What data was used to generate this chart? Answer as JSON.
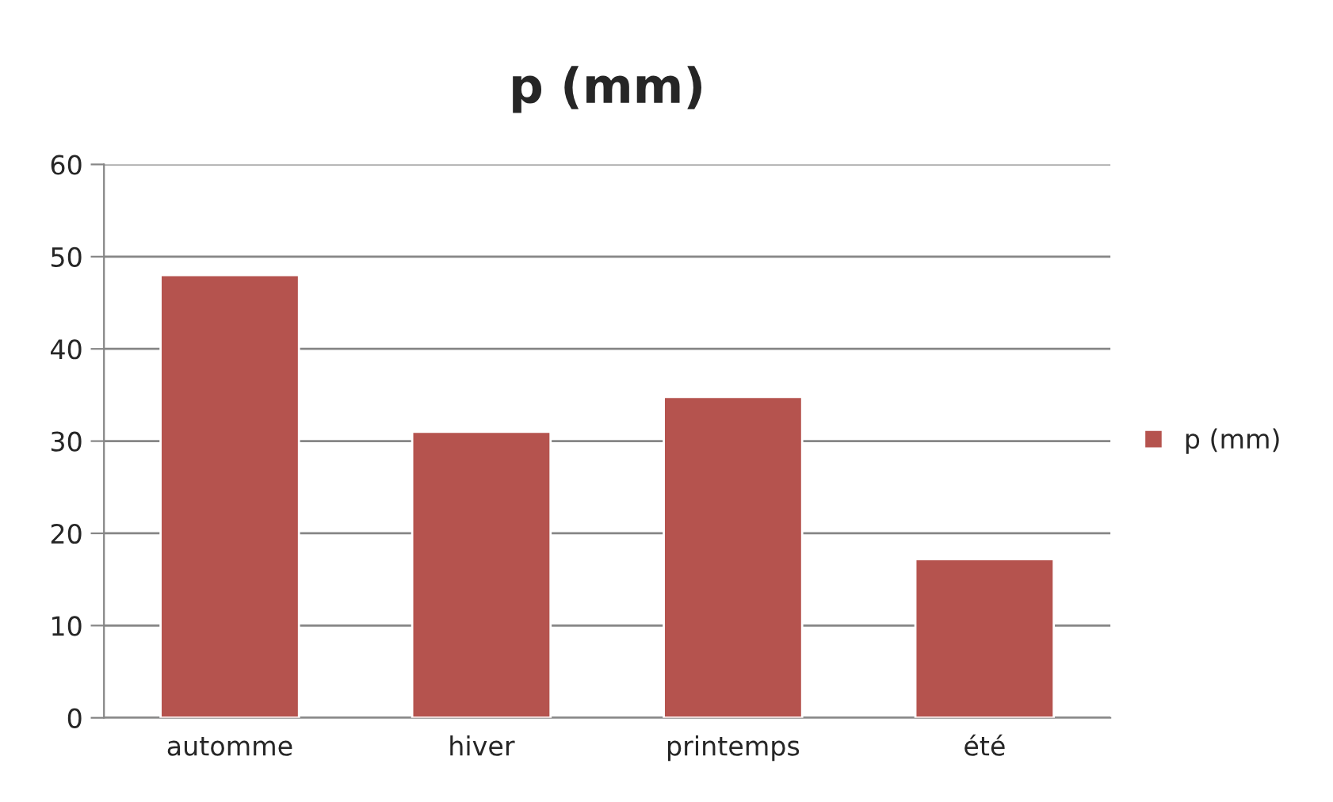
{
  "chart_data": {
    "type": "bar",
    "title": "p (mm)",
    "categories": [
      "automme",
      "hiver",
      "printemps",
      "été"
    ],
    "series": [
      {
        "name": "p (mm)",
        "color": "#b5534e",
        "values": [
          48,
          31,
          34.8,
          17.2
        ]
      }
    ],
    "ylim": [
      0,
      60
    ],
    "yticks": [
      0,
      10,
      20,
      30,
      40,
      50,
      60
    ],
    "grid": "y",
    "legend": "right"
  }
}
